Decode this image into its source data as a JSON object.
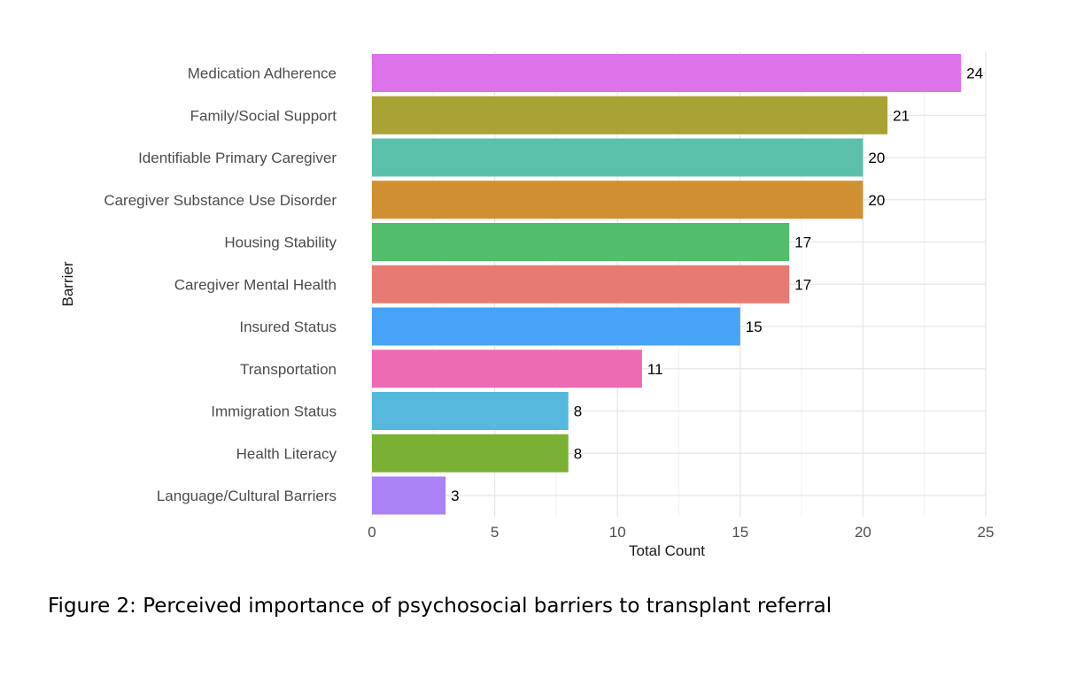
{
  "chart_data": {
    "type": "bar",
    "orientation": "horizontal",
    "categories": [
      "Medication Adherence",
      "Family/Social Support",
      "Identifiable Primary Caregiver",
      "Caregiver Substance Use Disorder",
      "Housing Stability",
      "Caregiver Mental Health",
      "Insured Status",
      "Transportation",
      "Immigration Status",
      "Health Literacy",
      "Language/Cultural Barriers"
    ],
    "values": [
      24,
      21,
      20,
      20,
      17,
      17,
      15,
      11,
      8,
      8,
      3
    ],
    "colors": [
      "#DB72E8",
      "#A9A234",
      "#5BC0AA",
      "#D09032",
      "#52BD6B",
      "#E77B74",
      "#46A3F8",
      "#ED6BB3",
      "#55B8DC",
      "#7AB135",
      "#AB82F6"
    ],
    "xlabel": "Total Count",
    "ylabel": "Barrier",
    "xlim": [
      0,
      25
    ],
    "xticks": [
      0,
      5,
      10,
      15,
      20,
      25
    ],
    "grid": true,
    "legend": "none"
  },
  "caption": "Figure 2: Perceived importance of psychosocial barriers to transplant referral"
}
